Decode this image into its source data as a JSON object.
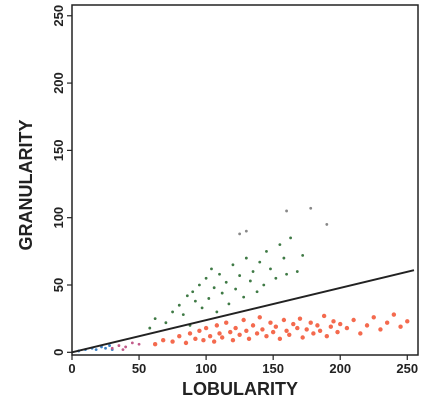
{
  "chart_data": {
    "type": "scatter",
    "x_label": "LOBULARITY",
    "y_label": "GRANULARITY",
    "xlim": [
      0,
      258
    ],
    "ylim": [
      -2,
      258
    ],
    "xticks": [
      0,
      50,
      100,
      150,
      200,
      250
    ],
    "yticks": [
      0,
      50,
      100,
      150,
      200,
      250
    ],
    "series": [
      {
        "color": "#3f7a45",
        "x": [
          58,
          62,
          70,
          75,
          80,
          83,
          86,
          88,
          90,
          92,
          95,
          97,
          100,
          102,
          104,
          106,
          108,
          110,
          112,
          115,
          117,
          120,
          122,
          125,
          128,
          130,
          133,
          135,
          138,
          140,
          143,
          145,
          148,
          152,
          155,
          158,
          160,
          163,
          168,
          172
        ],
        "y": [
          18,
          25,
          22,
          30,
          35,
          28,
          42,
          20,
          45,
          38,
          50,
          33,
          55,
          40,
          62,
          48,
          30,
          58,
          44,
          52,
          36,
          65,
          47,
          57,
          41,
          70,
          53,
          60,
          45,
          67,
          50,
          75,
          62,
          55,
          80,
          70,
          58,
          85,
          60,
          72
        ]
      },
      {
        "color": "#f46a4e",
        "x": [
          62,
          68,
          75,
          80,
          85,
          88,
          92,
          95,
          98,
          100,
          103,
          106,
          108,
          110,
          112,
          115,
          118,
          120,
          122,
          125,
          128,
          130,
          132,
          135,
          138,
          140,
          142,
          145,
          148,
          150,
          152,
          155,
          158,
          160,
          162,
          165,
          168,
          170,
          172,
          175,
          178,
          180,
          183,
          185,
          188,
          190,
          193,
          195,
          198,
          200,
          205,
          210,
          215,
          220,
          225,
          230,
          235,
          240,
          245,
          250
        ],
        "y": [
          6,
          9,
          8,
          12,
          7,
          14,
          10,
          16,
          9,
          18,
          12,
          8,
          20,
          14,
          11,
          22,
          15,
          9,
          18,
          13,
          24,
          16,
          10,
          20,
          14,
          26,
          17,
          12,
          22,
          15,
          19,
          10,
          24,
          16,
          13,
          21,
          18,
          25,
          11,
          17,
          22,
          14,
          20,
          16,
          27,
          12,
          19,
          23,
          15,
          21,
          18,
          24,
          14,
          20,
          26,
          17,
          22,
          28,
          19,
          23
        ]
      },
      {
        "color": "#3a7fc4",
        "x": [
          5,
          10,
          15,
          18,
          22,
          25,
          28,
          30
        ],
        "y": [
          1,
          2,
          3,
          2,
          4,
          3,
          5,
          2
        ]
      },
      {
        "color": "#c25a8a",
        "x": [
          30,
          35,
          40,
          45,
          50,
          38
        ],
        "y": [
          3,
          5,
          4,
          7,
          6,
          2
        ]
      },
      {
        "color": "#888888",
        "x": [
          125,
          130,
          160,
          178,
          190
        ],
        "y": [
          88,
          90,
          105,
          107,
          95
        ]
      }
    ],
    "reference_line": {
      "color": "#222222",
      "x": [
        0,
        255
      ],
      "y": [
        0,
        61
      ]
    }
  }
}
